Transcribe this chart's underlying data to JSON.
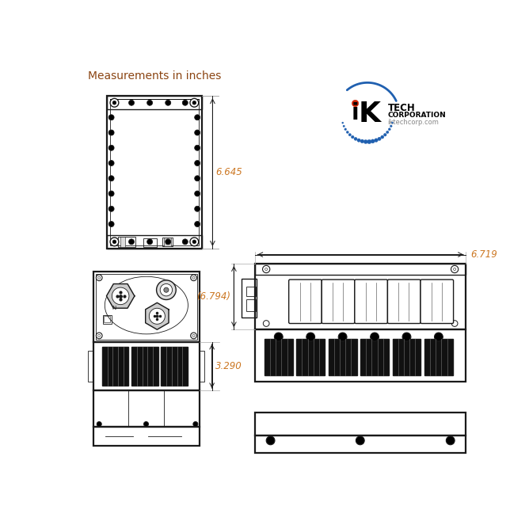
{
  "title": "Measurements in inches",
  "title_color": "#8B4513",
  "dim_color": "#CC7722",
  "line_color": "#1a1a1a",
  "bg_color": "#ffffff",
  "dim_6645": "6.645",
  "dim_3290": "3.290",
  "dim_6794": "(6.794)",
  "dim_6719": "6.719",
  "blue_color": "#2060b0",
  "red_color": "#cc2200",
  "gray_color": "#888888",
  "dark_gray": "#333333"
}
